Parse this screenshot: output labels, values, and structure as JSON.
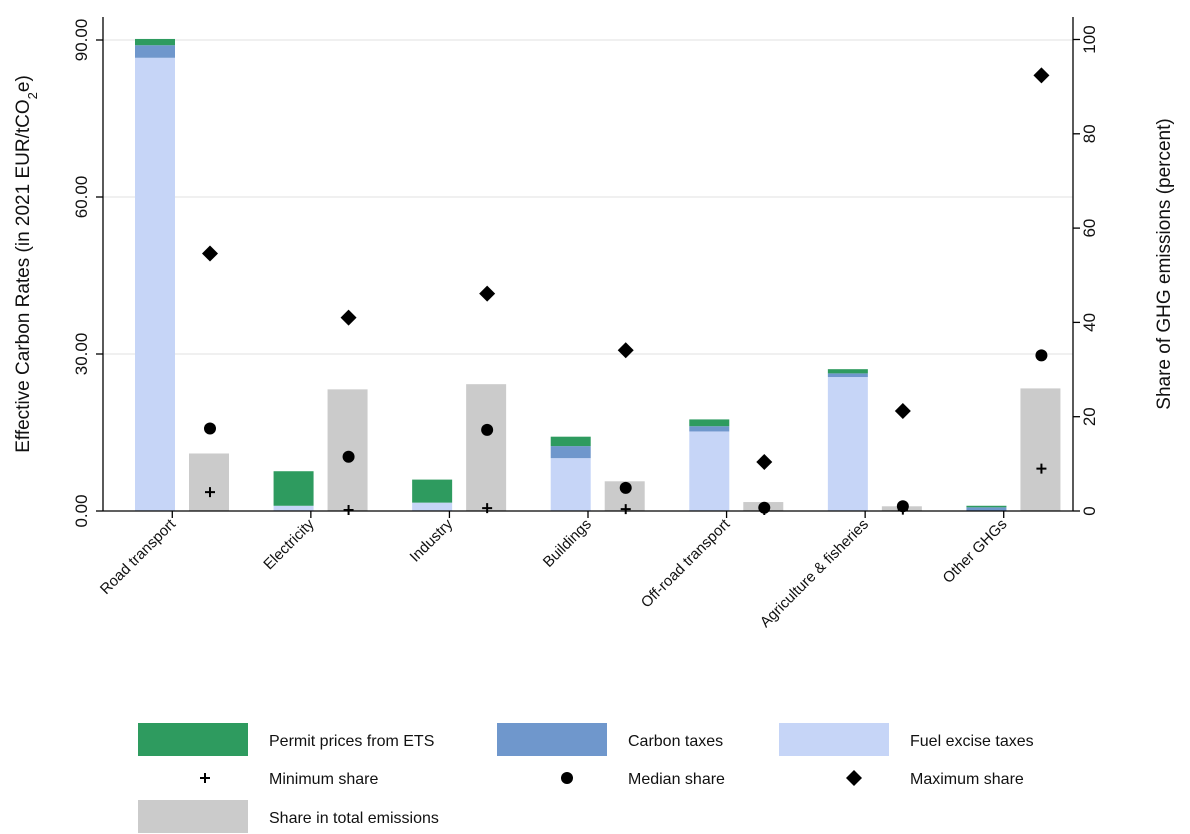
{
  "chart_data": {
    "type": "bar",
    "categories": [
      "Road transport",
      "Electricity",
      "Industry",
      "Buildings",
      "Off-road transport",
      "Agriculture & fisheries",
      "Other GHGs"
    ],
    "left_axis": {
      "label": "Effective Carbon Rates (in 2021 EUR/tCO",
      "label_sub": "2",
      "label_end": "e)",
      "ticks": [
        "0.00",
        "30.00",
        "60.00",
        "90.00"
      ],
      "tick_values": [
        0,
        30,
        60,
        90
      ],
      "ylim": [
        0,
        96
      ]
    },
    "right_axis": {
      "label": "Share of GHG emissions (percent)",
      "ticks": [
        "0",
        "20",
        "40",
        "60",
        "80",
        "100"
      ],
      "tick_values": [
        0,
        20,
        40,
        60,
        80,
        100
      ],
      "ylim": [
        0,
        104
      ]
    },
    "stacked_series": [
      {
        "name": "Fuel excise taxes",
        "color": "#c6d5f7",
        "values": [
          86.6,
          1.0,
          1.6,
          10.1,
          15.2,
          25.6,
          0.0
        ]
      },
      {
        "name": "Carbon taxes",
        "color": "#6f97cc",
        "values": [
          2.4,
          0.0,
          0.0,
          2.3,
          1.0,
          0.7,
          0.7
        ]
      },
      {
        "name": "Permit prices from ETS",
        "color": "#2e9b5f",
        "values": [
          1.2,
          6.6,
          4.4,
          1.8,
          1.3,
          0.8,
          0.3
        ]
      }
    ],
    "share_series": {
      "name": "Share in total emissions",
      "color": "#cbcbcb",
      "values": [
        12.2,
        25.8,
        26.9,
        6.3,
        1.9,
        1.0,
        26.0
      ]
    },
    "min_share": {
      "name": "Minimum share",
      "values": [
        4.0,
        0.2,
        0.6,
        0.4,
        0.2,
        0.3,
        9.0
      ]
    },
    "median_share": {
      "name": "Median share",
      "values": [
        17.5,
        11.5,
        17.2,
        4.9,
        0.7,
        1.0,
        33.0
      ]
    },
    "max_share": {
      "name": "Maximum share",
      "values": [
        54.6,
        41.0,
        46.1,
        34.1,
        10.4,
        21.2,
        92.4
      ]
    },
    "legend": {
      "position": "bottom",
      "items": [
        {
          "label": "Permit prices from ETS",
          "symbol": "rect",
          "color": "#2e9b5f"
        },
        {
          "label": "Carbon taxes",
          "symbol": "rect",
          "color": "#6f97cc"
        },
        {
          "label": "Fuel excise taxes",
          "symbol": "rect",
          "color": "#c6d5f7"
        },
        {
          "label": "Minimum share",
          "symbol": "plus",
          "color": "#000000"
        },
        {
          "label": "Median share",
          "symbol": "circle",
          "color": "#000000"
        },
        {
          "label": "Maximum share",
          "symbol": "diamond",
          "color": "#000000"
        },
        {
          "label": "Share in total emissions",
          "symbol": "rect",
          "color": "#cbcbcb"
        }
      ]
    },
    "grid": true
  }
}
